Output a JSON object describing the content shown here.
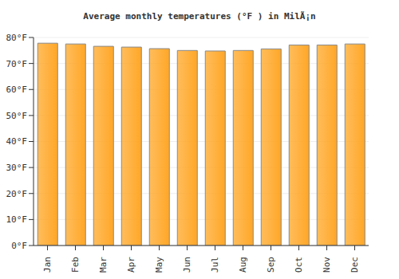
{
  "chart_data": {
    "type": "bar",
    "title": "Average monthly temperatures (°F ) in MilÃ¡n",
    "categories": [
      "Jan",
      "Feb",
      "Mar",
      "Apr",
      "May",
      "Jun",
      "Jul",
      "Aug",
      "Sep",
      "Oct",
      "Nov",
      "Dec"
    ],
    "values": [
      77.8,
      77.5,
      76.6,
      76.3,
      75.7,
      75.0,
      74.8,
      75.0,
      75.6,
      77.1,
      77.1,
      77.5
    ],
    "color": "#ffa726",
    "ylim": [
      0,
      80
    ],
    "yticks": [
      {
        "value": 0,
        "label": "0°F"
      },
      {
        "value": 10,
        "label": "10°F"
      },
      {
        "value": 20,
        "label": "20°F"
      },
      {
        "value": 30,
        "label": "30°F"
      },
      {
        "value": 40,
        "label": "40°F"
      },
      {
        "value": 50,
        "label": "50°F"
      },
      {
        "value": 60,
        "label": "60°F"
      },
      {
        "value": 70,
        "label": "70°F"
      },
      {
        "value": 80,
        "label": "80°F"
      }
    ],
    "grid": true
  }
}
